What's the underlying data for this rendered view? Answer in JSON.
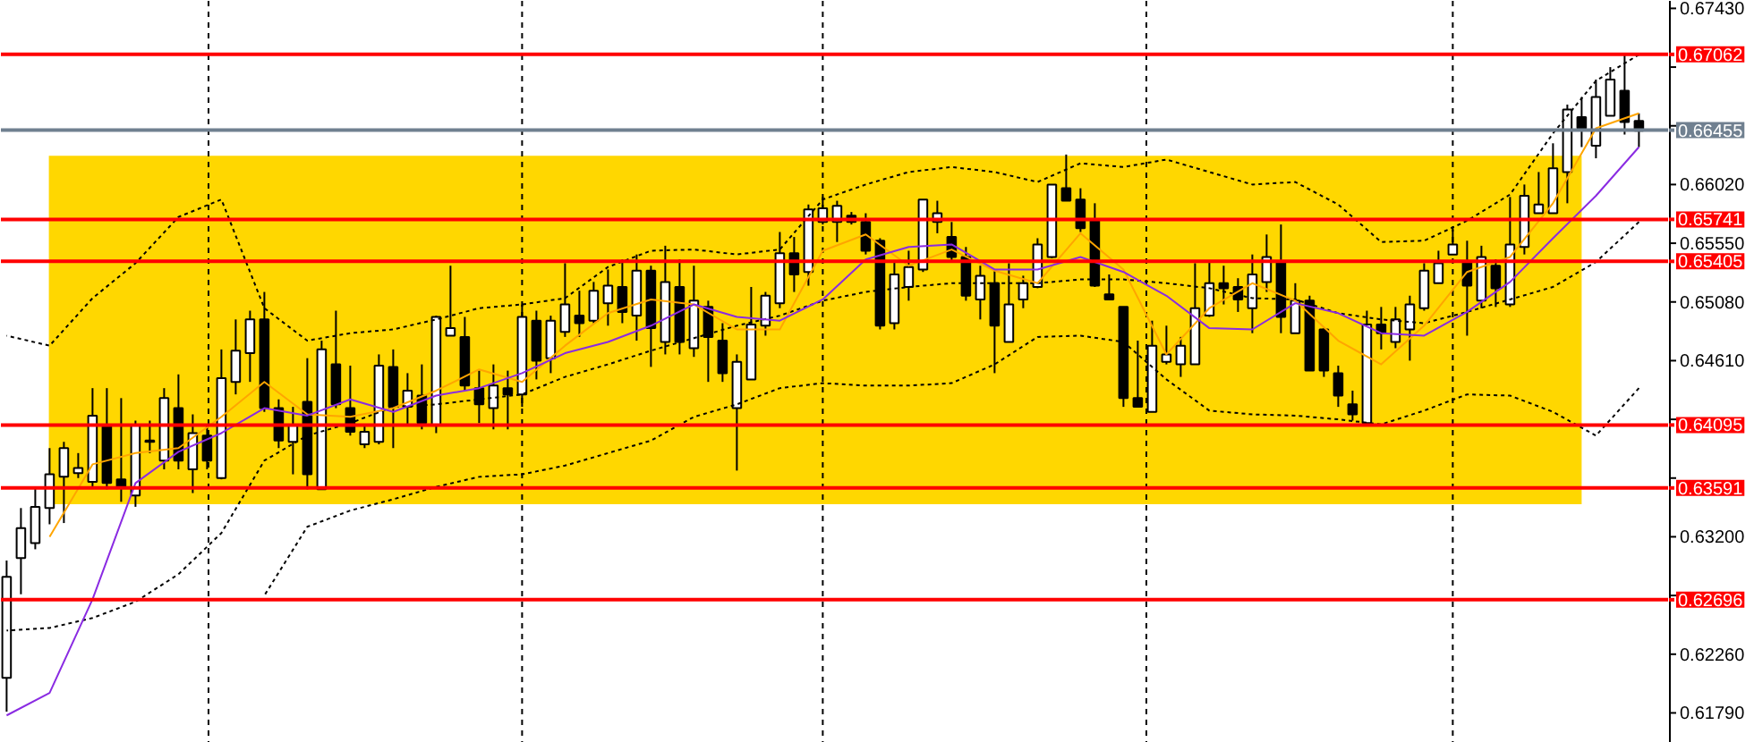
{
  "chart_data": {
    "type": "candlestick",
    "categories": [
      null,
      null,
      null,
      null,
      null,
      null,
      null,
      null,
      null,
      null,
      null,
      null,
      null,
      null,
      null,
      null,
      null,
      null,
      null,
      null,
      null,
      null,
      null,
      null,
      null,
      null,
      null,
      null,
      null,
      null,
      null,
      null,
      null,
      null,
      null,
      null,
      null,
      null,
      null,
      null,
      null,
      null,
      null,
      null,
      null,
      null,
      null,
      null,
      null,
      null,
      null,
      null,
      null,
      null,
      null,
      null,
      null,
      null,
      null,
      null,
      null,
      null,
      null,
      null,
      null,
      null,
      null,
      null,
      null,
      null,
      null,
      null,
      null,
      null,
      null,
      null,
      null,
      null,
      null,
      null,
      null,
      null,
      null,
      null,
      null,
      null,
      null,
      null,
      null,
      null,
      null,
      null,
      null,
      null,
      null,
      null,
      null,
      null,
      null,
      null,
      null,
      null,
      null,
      null,
      null,
      null,
      null,
      null,
      null,
      null,
      null,
      null,
      null,
      null,
      null
    ],
    "ohlc": [
      [
        0.6207,
        0.6301,
        0.618,
        0.6288
      ],
      [
        0.6303,
        0.6343,
        0.6274,
        0.6327
      ],
      [
        0.6315,
        0.636,
        0.631,
        0.6344
      ],
      [
        0.6343,
        0.6391,
        0.633,
        0.637
      ],
      [
        0.6368,
        0.6396,
        0.6331,
        0.6391
      ],
      [
        0.6371,
        0.6387,
        0.6367,
        0.6375
      ],
      [
        0.6364,
        0.6439,
        0.636,
        0.6417
      ],
      [
        0.6409,
        0.6439,
        0.6358,
        0.6363
      ],
      [
        0.6366,
        0.6431,
        0.6348,
        0.636
      ],
      [
        0.6353,
        0.6413,
        0.6344,
        0.6409
      ],
      [
        0.6397,
        0.6413,
        0.6387,
        0.6396
      ],
      [
        0.6381,
        0.6439,
        0.6374,
        0.6431
      ],
      [
        0.6423,
        0.645,
        0.6374,
        0.6381
      ],
      [
        0.6374,
        0.6418,
        0.6355,
        0.6403
      ],
      [
        0.6401,
        0.6409,
        0.6374,
        0.6381
      ],
      [
        0.6367,
        0.647,
        0.6366,
        0.6447
      ],
      [
        0.6444,
        0.6494,
        0.6434,
        0.6469
      ],
      [
        0.6467,
        0.6501,
        0.6444,
        0.6494
      ],
      [
        0.6494,
        0.6516,
        0.642,
        0.6423
      ],
      [
        0.6423,
        0.643,
        0.6391,
        0.6397
      ],
      [
        0.6396,
        0.6424,
        0.637,
        0.6409
      ],
      [
        0.6428,
        0.6463,
        0.6358,
        0.637
      ],
      [
        0.6358,
        0.6477,
        0.6358,
        0.647
      ],
      [
        0.6458,
        0.6501,
        0.6423,
        0.6426
      ],
      [
        0.6423,
        0.6457,
        0.6401,
        0.6404
      ],
      [
        0.6394,
        0.641,
        0.6391,
        0.6404
      ],
      [
        0.6396,
        0.6466,
        0.6394,
        0.6457
      ],
      [
        0.6456,
        0.647,
        0.6391,
        0.6424
      ],
      [
        0.6424,
        0.6451,
        0.641,
        0.6437
      ],
      [
        0.6433,
        0.6458,
        0.6406,
        0.6411
      ],
      [
        0.6409,
        0.6497,
        0.6403,
        0.6496
      ],
      [
        0.6481,
        0.6537,
        0.6481,
        0.6487
      ],
      [
        0.648,
        0.6496,
        0.6437,
        0.6441
      ],
      [
        0.6439,
        0.6453,
        0.6411,
        0.6426
      ],
      [
        0.6423,
        0.6458,
        0.6406,
        0.6441
      ],
      [
        0.6439,
        0.6453,
        0.6406,
        0.6434
      ],
      [
        0.6434,
        0.6506,
        0.6424,
        0.6496
      ],
      [
        0.6493,
        0.6501,
        0.6446,
        0.6461
      ],
      [
        0.6463,
        0.6497,
        0.6451,
        0.6493
      ],
      [
        0.6484,
        0.6539,
        0.648,
        0.6506
      ],
      [
        0.6497,
        0.6517,
        0.648,
        0.6491
      ],
      [
        0.6493,
        0.6524,
        0.6491,
        0.6517
      ],
      [
        0.6507,
        0.6534,
        0.6489,
        0.6521
      ],
      [
        0.652,
        0.6542,
        0.6491,
        0.65
      ],
      [
        0.6497,
        0.6546,
        0.6477,
        0.6533
      ],
      [
        0.6533,
        0.6537,
        0.6456,
        0.6487
      ],
      [
        0.6476,
        0.6553,
        0.6466,
        0.6524
      ],
      [
        0.652,
        0.6542,
        0.6466,
        0.6476
      ],
      [
        0.6471,
        0.6537,
        0.6464,
        0.6509
      ],
      [
        0.6504,
        0.6509,
        0.6444,
        0.648
      ],
      [
        0.6477,
        0.6491,
        0.6444,
        0.6451
      ],
      [
        0.6423,
        0.6466,
        0.6373,
        0.646
      ],
      [
        0.6446,
        0.652,
        0.6446,
        0.649
      ],
      [
        0.6489,
        0.6516,
        0.6481,
        0.6513
      ],
      [
        0.6507,
        0.6564,
        0.6503,
        0.6547
      ],
      [
        0.6547,
        0.656,
        0.6516,
        0.653
      ],
      [
        0.6532,
        0.6586,
        0.6521,
        0.6582
      ],
      [
        0.6572,
        0.6592,
        0.657,
        0.6583
      ],
      [
        0.6572,
        0.6589,
        0.6556,
        0.6585
      ],
      [
        0.6577,
        0.658,
        0.657,
        0.6572
      ],
      [
        0.6572,
        0.6579,
        0.6546,
        0.6549
      ],
      [
        0.6557,
        0.6559,
        0.6486,
        0.6489
      ],
      [
        0.6491,
        0.654,
        0.6486,
        0.653
      ],
      [
        0.652,
        0.6549,
        0.6509,
        0.6536
      ],
      [
        0.6534,
        0.659,
        0.6532,
        0.659
      ],
      [
        0.6572,
        0.6589,
        0.6563,
        0.6579
      ],
      [
        0.656,
        0.6572,
        0.654,
        0.6544
      ],
      [
        0.6544,
        0.6552,
        0.6509,
        0.6513
      ],
      [
        0.651,
        0.6537,
        0.6494,
        0.6529
      ],
      [
        0.6523,
        0.6534,
        0.6451,
        0.6489
      ],
      [
        0.6476,
        0.6539,
        0.6476,
        0.6506
      ],
      [
        0.651,
        0.6529,
        0.6503,
        0.6523
      ],
      [
        0.652,
        0.6559,
        0.6519,
        0.6554
      ],
      [
        0.6544,
        0.6602,
        0.6543,
        0.6602
      ],
      [
        0.6599,
        0.6626,
        0.6589,
        0.6589
      ],
      [
        0.659,
        0.6599,
        0.6564,
        0.6567
      ],
      [
        0.6573,
        0.6587,
        0.652,
        0.6521
      ],
      [
        0.6514,
        0.653,
        0.651,
        0.651
      ],
      [
        0.6504,
        0.6504,
        0.6424,
        0.6431
      ],
      [
        0.6431,
        0.6477,
        0.6424,
        0.6424
      ],
      [
        0.642,
        0.6493,
        0.642,
        0.6473
      ],
      [
        0.646,
        0.6489,
        0.6458,
        0.6466
      ],
      [
        0.6458,
        0.648,
        0.6448,
        0.6473
      ],
      [
        0.6458,
        0.6539,
        0.6458,
        0.6503
      ],
      [
        0.6497,
        0.654,
        0.6496,
        0.6523
      ],
      [
        0.6523,
        0.6537,
        0.6506,
        0.6519
      ],
      [
        0.652,
        0.6527,
        0.65,
        0.651
      ],
      [
        0.6503,
        0.6546,
        0.6483,
        0.653
      ],
      [
        0.6524,
        0.6562,
        0.6516,
        0.6544
      ],
      [
        0.654,
        0.657,
        0.6483,
        0.6496
      ],
      [
        0.6483,
        0.6523,
        0.6483,
        0.6509
      ],
      [
        0.6509,
        0.6513,
        0.6453,
        0.6453
      ],
      [
        0.6486,
        0.6487,
        0.6448,
        0.6453
      ],
      [
        0.6451,
        0.6457,
        0.6424,
        0.6433
      ],
      [
        0.6426,
        0.6437,
        0.6413,
        0.6418
      ],
      [
        0.6411,
        0.6501,
        0.6411,
        0.649
      ],
      [
        0.649,
        0.6504,
        0.647,
        0.6483
      ],
      [
        0.6476,
        0.6504,
        0.6471,
        0.6494
      ],
      [
        0.6486,
        0.6513,
        0.6461,
        0.6506
      ],
      [
        0.6503,
        0.6539,
        0.6501,
        0.6533
      ],
      [
        0.6523,
        0.6549,
        0.6523,
        0.6539
      ],
      [
        0.6546,
        0.6566,
        0.6546,
        0.6554
      ],
      [
        0.654,
        0.6557,
        0.6481,
        0.6521
      ],
      [
        0.6509,
        0.6553,
        0.6503,
        0.6544
      ],
      [
        0.6537,
        0.6542,
        0.6504,
        0.6519
      ],
      [
        0.6506,
        0.6592,
        0.6504,
        0.6554
      ],
      [
        0.6552,
        0.6602,
        0.6546,
        0.6593
      ],
      [
        0.6579,
        0.6612,
        0.6579,
        0.6586
      ],
      [
        0.6579,
        0.6635,
        0.6579,
        0.6615
      ],
      [
        0.6612,
        0.6666,
        0.6587,
        0.6662
      ],
      [
        0.6656,
        0.6672,
        0.6632,
        0.6647
      ],
      [
        0.6633,
        0.6686,
        0.6623,
        0.6672
      ],
      [
        0.6657,
        0.6696,
        0.6657,
        0.6686
      ],
      [
        0.6677,
        0.6706,
        0.6642,
        0.6652
      ],
      [
        0.6653,
        0.6659,
        0.6632,
        0.6645
      ]
    ],
    "series": [
      {
        "type": "line",
        "color": "#000000",
        "line_style": "dotted",
        "values": [
          0.6481,
          null,
          null,
          0.6473,
          null,
          null,
          0.6511,
          null,
          null,
          0.6539,
          null,
          null,
          0.6576,
          null,
          null,
          0.659,
          null,
          null,
          0.6503,
          null,
          null,
          0.6477,
          null,
          null,
          0.6483,
          null,
          null,
          0.6486,
          null,
          null,
          0.6494,
          null,
          null,
          0.6503,
          null,
          null,
          0.6506,
          null,
          null,
          0.6511,
          null,
          null,
          0.6536,
          null,
          null,
          0.6549,
          null,
          null,
          0.655,
          null,
          null,
          0.6546,
          null,
          null,
          0.655,
          null,
          null,
          0.659,
          null,
          null,
          0.6602,
          null,
          null,
          0.6612,
          null,
          null,
          0.6616,
          null,
          null,
          0.6612,
          null,
          null,
          0.6604,
          null,
          null,
          0.6619,
          null,
          null,
          0.6616,
          null,
          null,
          0.6622,
          null,
          null,
          0.6612,
          null,
          null,
          0.6602,
          null,
          null,
          0.6604,
          null,
          null,
          0.6586,
          null,
          null,
          0.6556,
          null,
          null,
          0.6557,
          null,
          null,
          0.6573,
          null,
          null,
          0.6594,
          null,
          null,
          0.6643,
          null,
          null,
          0.6685,
          null,
          null,
          0.6706
        ]
      },
      {
        "type": "line",
        "color": "#000000",
        "line_style": "dotted",
        "values": [
          0.6245,
          null,
          null,
          0.6247,
          null,
          null,
          0.6255,
          null,
          null,
          0.6268,
          null,
          null,
          0.629,
          null,
          null,
          0.6323,
          null,
          null,
          0.6381,
          null,
          null,
          0.6401,
          null,
          null,
          0.6411,
          null,
          null,
          0.6424,
          null,
          null,
          0.6426,
          null,
          null,
          0.643,
          null,
          null,
          0.6434,
          null,
          null,
          0.6448,
          null,
          null,
          0.6458,
          null,
          null,
          0.6469,
          null,
          null,
          0.6479,
          null,
          null,
          0.6489,
          null,
          null,
          0.6497,
          null,
          null,
          0.6509,
          null,
          null,
          0.6516,
          null,
          null,
          0.652,
          null,
          null,
          0.6523,
          null,
          null,
          0.6523,
          null,
          null,
          0.6523,
          null,
          null,
          0.6526,
          null,
          null,
          0.6526,
          null,
          null,
          0.6523,
          null,
          null,
          0.6519,
          null,
          null,
          0.6511,
          null,
          null,
          0.651,
          null,
          null,
          0.6499,
          null,
          null,
          0.6494,
          null,
          null,
          0.6491,
          null,
          null,
          0.65,
          null,
          null,
          0.651,
          null,
          null,
          0.652,
          null,
          null,
          0.654,
          null,
          null,
          0.6572
        ]
      },
      {
        "type": "line",
        "color": "#000000",
        "line_style": "dotted",
        "values": [
          null,
          null,
          null,
          null,
          null,
          null,
          null,
          null,
          null,
          null,
          null,
          null,
          null,
          null,
          null,
          null,
          null,
          null,
          0.6273,
          null,
          null,
          0.6328,
          null,
          null,
          0.6341,
          null,
          null,
          0.635,
          null,
          null,
          0.636,
          null,
          null,
          0.6368,
          null,
          null,
          0.637,
          null,
          null,
          0.6377,
          null,
          null,
          0.6387,
          null,
          null,
          0.6397,
          null,
          null,
          0.6416,
          null,
          null,
          0.6426,
          null,
          null,
          0.6439,
          null,
          null,
          0.6443,
          null,
          null,
          0.6441,
          null,
          null,
          0.6441,
          null,
          null,
          0.6443,
          null,
          null,
          0.6458,
          null,
          null,
          0.648,
          null,
          null,
          0.6481,
          null,
          null,
          0.6476,
          null,
          null,
          0.6446,
          null,
          null,
          0.6421,
          null,
          null,
          0.6418,
          null,
          null,
          0.6417,
          null,
          null,
          0.6414,
          null,
          null,
          0.641,
          null,
          null,
          0.6421,
          null,
          null,
          0.6434,
          null,
          null,
          0.6433,
          null,
          null,
          0.642,
          null,
          null,
          0.6401,
          null,
          null,
          0.6439
        ]
      },
      {
        "type": "line",
        "color": "#ffa500",
        "line_style": "solid",
        "values": [
          null,
          null,
          null,
          0.632,
          null,
          null,
          0.6378,
          null,
          null,
          0.6387,
          null,
          null,
          0.6391,
          null,
          null,
          0.6416,
          null,
          null,
          0.6444,
          null,
          null,
          0.6418,
          null,
          null,
          0.6416,
          null,
          null,
          0.6423,
          null,
          null,
          0.6437,
          null,
          null,
          0.6454,
          null,
          null,
          0.6444,
          null,
          null,
          0.6473,
          null,
          null,
          0.6499,
          null,
          null,
          0.651,
          null,
          null,
          0.6506,
          null,
          null,
          0.6486,
          null,
          null,
          0.6486,
          null,
          null,
          0.6549,
          null,
          null,
          0.6562,
          null,
          null,
          0.6537,
          null,
          null,
          0.655,
          null,
          null,
          0.6533,
          null,
          null,
          0.6523,
          null,
          null,
          0.6563,
          null,
          null,
          0.6534,
          null,
          null,
          0.6466,
          null,
          null,
          0.6503,
          null,
          null,
          0.6523,
          null,
          null,
          0.6509,
          null,
          null,
          0.6477,
          null,
          null,
          0.6458,
          null,
          null,
          0.6489,
          null,
          null,
          0.6532,
          null,
          null,
          0.6544,
          null,
          null,
          0.6587,
          null,
          null,
          0.6647,
          null,
          null,
          0.6659
        ]
      },
      {
        "type": "line",
        "color": "#8a2be2",
        "line_style": "solid",
        "values": [
          0.6177,
          null,
          null,
          0.6195,
          null,
          null,
          0.627,
          null,
          null,
          0.6363,
          null,
          null,
          0.6388,
          null,
          null,
          0.6403,
          null,
          null,
          0.6423,
          null,
          null,
          0.6417,
          null,
          null,
          0.643,
          null,
          null,
          0.642,
          null,
          null,
          0.6433,
          null,
          null,
          0.6439,
          null,
          null,
          0.6451,
          null,
          null,
          0.6467,
          null,
          null,
          0.6476,
          null,
          null,
          0.6489,
          null,
          null,
          0.6506,
          null,
          null,
          0.6496,
          null,
          null,
          0.6493,
          null,
          null,
          0.651,
          null,
          null,
          0.6542,
          null,
          null,
          0.6552,
          null,
          null,
          0.6554,
          null,
          null,
          0.6534,
          null,
          null,
          0.6534,
          null,
          null,
          0.6544,
          null,
          null,
          0.6532,
          null,
          null,
          0.6513,
          null,
          null,
          0.6487,
          null,
          null,
          0.6486,
          null,
          null,
          0.6507,
          null,
          null,
          0.6499,
          null,
          null,
          0.6483,
          null,
          null,
          0.6481,
          null,
          null,
          0.65,
          null,
          null,
          0.6524,
          null,
          null,
          0.6559,
          null,
          null,
          0.6593,
          null,
          null,
          0.6632
        ]
      }
    ],
    "grid": "x",
    "ylim": [
      0.6155,
      0.6749
    ],
    "yticks": [
      {
        "value": 0.6743,
        "label": "0.67430"
      },
      {
        "value": 0.6696,
        "label": null
      },
      {
        "value": 0.6649,
        "label": null
      },
      {
        "value": 0.6602,
        "label": "0.66020"
      },
      {
        "value": 0.6555,
        "label": "0.65550"
      },
      {
        "value": 0.6508,
        "label": "0.65080"
      },
      {
        "value": 0.6461,
        "label": "0.64610"
      },
      {
        "value": 0.6414,
        "label": null
      },
      {
        "value": 0.6367,
        "label": null
      },
      {
        "value": 0.632,
        "label": "0.63200"
      },
      {
        "value": 0.6273,
        "label": null
      },
      {
        "value": 0.6226,
        "label": "0.62260"
      },
      {
        "value": 0.6179,
        "label": "0.61790"
      }
    ],
    "ref_lines": [
      {
        "axis": "y",
        "value": 0.67062,
        "label": "0.67062",
        "color": "#ff0000"
      },
      {
        "axis": "y",
        "value": 0.66455,
        "label": "0.66455",
        "color": "#708090"
      },
      {
        "axis": "y",
        "value": 0.65741,
        "label": "0.65741",
        "color": "#ff0000"
      },
      {
        "axis": "y",
        "value": 0.65405,
        "label": "0.65405",
        "color": "#ff0000"
      },
      {
        "axis": "y",
        "value": 0.64095,
        "label": "0.64095",
        "color": "#ff0000"
      },
      {
        "axis": "y",
        "value": 0.63591,
        "label": "0.63591",
        "color": "#ff0000"
      },
      {
        "axis": "y",
        "value": 0.62696,
        "label": "0.62696",
        "color": "#ff0000"
      }
    ],
    "bands": [
      {
        "axis": "y",
        "from": 0.6346,
        "to": 0.6625,
        "color": "#ffd700"
      }
    ]
  }
}
